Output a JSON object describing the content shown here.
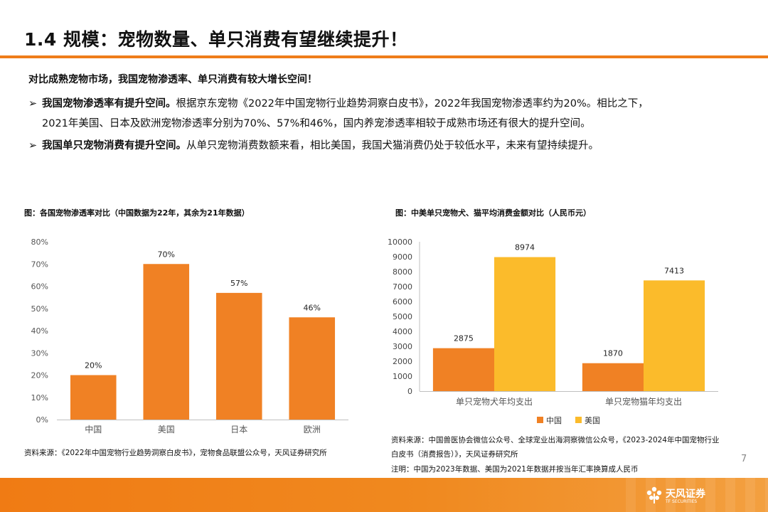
{
  "header": {
    "title": "1.4 规模：宠物数量、单只消费有望继续提升！"
  },
  "intro": "对比成熟宠物市场，我国宠物渗透率、单只消费有较大增长空间！",
  "bullets": [
    {
      "arrow": "➢",
      "bold": "我国宠物渗透率有提升空间。",
      "text1": "根据京东宠物《2022年中国宠物行业趋势洞察白皮书》，2022年我国宠物渗透率约为20%。相比之下，",
      "text2": "2021年美国、日本及欧洲宠物渗透率分别为70%、57%和46%，国内养宠渗透率相较于成熟市场还有很大的提升空间。"
    },
    {
      "arrow": "➢",
      "bold": "我国单只宠物消费有提升空间。",
      "text1": "从单只宠物消费数额来看，相比美国，我国犬猫消费仍处于较低水平，未来有望持续提升。"
    }
  ],
  "chart_data": [
    {
      "type": "bar",
      "title": "图：各国宠物渗透率对比（中国数据为22年，其余为21年数据）",
      "categories": [
        "中国",
        "美国",
        "日本",
        "欧洲"
      ],
      "values": [
        20,
        70,
        57,
        46
      ],
      "value_labels": [
        "20%",
        "70%",
        "57%",
        "46%"
      ],
      "yticks": [
        "0%",
        "10%",
        "20%",
        "30%",
        "40%",
        "50%",
        "60%",
        "70%",
        "80%"
      ],
      "ylim": [
        0,
        80
      ],
      "color": "#f08124",
      "grid": false,
      "source": "资料来源：《2022年中国宠物行业趋势洞察白皮书》，宠物食品联盟公众号，天风证券研究所"
    },
    {
      "type": "bar",
      "title": "图：中美单只宠物犬、猫平均消费金额对比（人民币元）",
      "categories": [
        "单只宠物犬年均支出",
        "单只宠物猫年均支出"
      ],
      "series": [
        {
          "name": "中国",
          "values": [
            2875,
            1870
          ],
          "color": "#f08124"
        },
        {
          "name": "美国",
          "values": [
            8974,
            7413
          ],
          "color": "#fbbb2b"
        }
      ],
      "yticks": [
        "0",
        "1000",
        "2000",
        "3000",
        "4000",
        "5000",
        "6000",
        "7000",
        "8000",
        "9000",
        "10000"
      ],
      "ylim": [
        0,
        10000
      ],
      "legend": "bottom",
      "grid": false,
      "source_lines": [
        "资料来源：中国兽医协会微信公众号、全球宠业出海洞察微信公众号，《2023-2024年中国宠物行业",
        "白皮书（消费报告）》，天风证券研究所",
        "注明：中国为2023年数据、美国为2021年数据并按当年汇率换算成人民币"
      ]
    }
  ],
  "page_number": "7",
  "footer": {
    "logo_name": "天风证券",
    "logo_sub": "TF SECURITIES",
    "logo_icon": "flower-logo-icon"
  }
}
